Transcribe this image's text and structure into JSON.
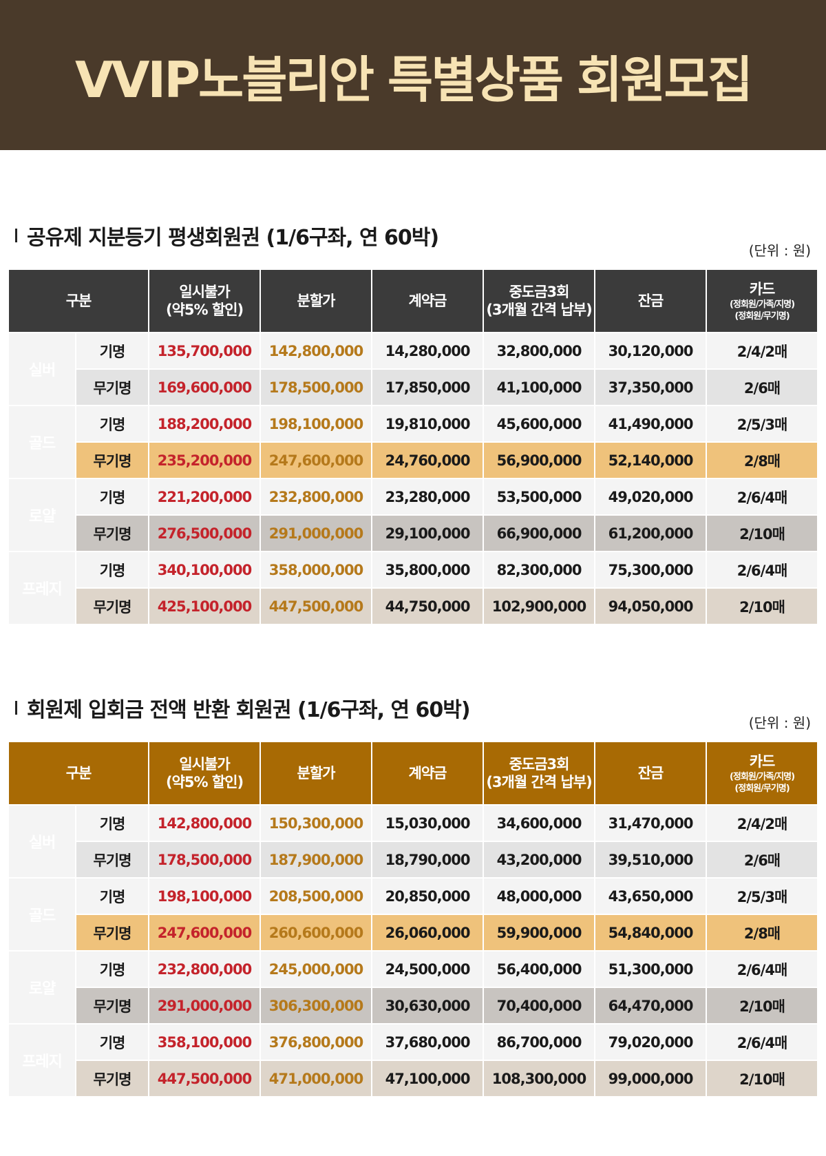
{
  "banner": {
    "title": "VVIP노블리안 특별상품 회원모집"
  },
  "headers": {
    "category": "구분",
    "lump_line1": "일시불가",
    "lump_line2": "(약5% 할인)",
    "installment": "분할가",
    "deposit": "계약금",
    "middle_line1": "중도금3회",
    "middle_line2": "(3개월 간격 납부)",
    "balance": "잔금",
    "card_line1": "카드",
    "card_line2": "(정회원/가족/지명)",
    "card_line3": "(정회원/무기명)"
  },
  "unit": "(단위 : 원)",
  "sections": [
    {
      "title": "공유제 지분등기 평생회원권 (1/6구좌, 연 60박)",
      "grades": [
        {
          "name": "실버",
          "rows": [
            {
              "type": "기명",
              "lump": "135,700,000",
              "installment": "142,800,000",
              "deposit": "14,280,000",
              "middle": "32,800,000",
              "balance": "30,120,000",
              "card": "2/4/2매"
            },
            {
              "type": "무기명",
              "lump": "169,600,000",
              "installment": "178,500,000",
              "deposit": "17,850,000",
              "middle": "41,100,000",
              "balance": "37,350,000",
              "card": "2/6매"
            }
          ]
        },
        {
          "name": "골드",
          "rows": [
            {
              "type": "기명",
              "lump": "188,200,000",
              "installment": "198,100,000",
              "deposit": "19,810,000",
              "middle": "45,600,000",
              "balance": "41,490,000",
              "card": "2/5/3매"
            },
            {
              "type": "무기명",
              "lump": "235,200,000",
              "installment": "247,600,000",
              "deposit": "24,760,000",
              "middle": "56,900,000",
              "balance": "52,140,000",
              "card": "2/8매"
            }
          ]
        },
        {
          "name": "로얄",
          "rows": [
            {
              "type": "기명",
              "lump": "221,200,000",
              "installment": "232,800,000",
              "deposit": "23,280,000",
              "middle": "53,500,000",
              "balance": "49,020,000",
              "card": "2/6/4매"
            },
            {
              "type": "무기명",
              "lump": "276,500,000",
              "installment": "291,000,000",
              "deposit": "29,100,000",
              "middle": "66,900,000",
              "balance": "61,200,000",
              "card": "2/10매"
            }
          ]
        },
        {
          "name": "프레지",
          "rows": [
            {
              "type": "기명",
              "lump": "340,100,000",
              "installment": "358,000,000",
              "deposit": "35,800,000",
              "middle": "82,300,000",
              "balance": "75,300,000",
              "card": "2/6/4매"
            },
            {
              "type": "무기명",
              "lump": "425,100,000",
              "installment": "447,500,000",
              "deposit": "44,750,000",
              "middle": "102,900,000",
              "balance": "94,050,000",
              "card": "2/10매"
            }
          ]
        }
      ]
    },
    {
      "title": "회원제 입회금 전액 반환 회원권 (1/6구좌, 연 60박)",
      "grades": [
        {
          "name": "실버",
          "rows": [
            {
              "type": "기명",
              "lump": "142,800,000",
              "installment": "150,300,000",
              "deposit": "15,030,000",
              "middle": "34,600,000",
              "balance": "31,470,000",
              "card": "2/4/2매"
            },
            {
              "type": "무기명",
              "lump": "178,500,000",
              "installment": "187,900,000",
              "deposit": "18,790,000",
              "middle": "43,200,000",
              "balance": "39,510,000",
              "card": "2/6매"
            }
          ]
        },
        {
          "name": "골드",
          "rows": [
            {
              "type": "기명",
              "lump": "198,100,000",
              "installment": "208,500,000",
              "deposit": "20,850,000",
              "middle": "48,000,000",
              "balance": "43,650,000",
              "card": "2/5/3매"
            },
            {
              "type": "무기명",
              "lump": "247,600,000",
              "installment": "260,600,000",
              "deposit": "26,060,000",
              "middle": "59,900,000",
              "balance": "54,840,000",
              "card": "2/8매"
            }
          ]
        },
        {
          "name": "로얄",
          "rows": [
            {
              "type": "기명",
              "lump": "232,800,000",
              "installment": "245,000,000",
              "deposit": "24,500,000",
              "middle": "56,400,000",
              "balance": "51,300,000",
              "card": "2/6/4매"
            },
            {
              "type": "무기명",
              "lump": "291,000,000",
              "installment": "306,300,000",
              "deposit": "30,630,000",
              "middle": "70,400,000",
              "balance": "64,470,000",
              "card": "2/10매"
            }
          ]
        },
        {
          "name": "프레지",
          "rows": [
            {
              "type": "기명",
              "lump": "358,100,000",
              "installment": "376,800,000",
              "deposit": "37,680,000",
              "middle": "86,700,000",
              "balance": "79,020,000",
              "card": "2/6/4매"
            },
            {
              "type": "무기명",
              "lump": "447,500,000",
              "installment": "471,000,000",
              "deposit": "47,100,000",
              "middle": "108,300,000",
              "balance": "99,000,000",
              "card": "2/10매"
            }
          ]
        }
      ]
    }
  ]
}
